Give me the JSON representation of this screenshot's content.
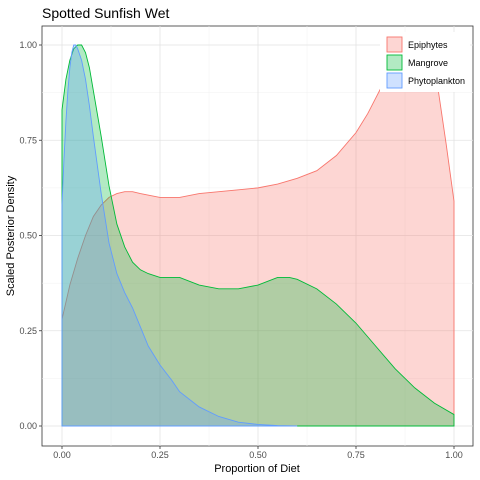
{
  "chart_data": {
    "type": "area",
    "title": "Spotted Sunfish Wet",
    "xlabel": "Proportion of Diet",
    "ylabel": "Scaled Posterior Density",
    "xlim": [
      0,
      1
    ],
    "ylim": [
      0,
      1
    ],
    "x_ticks": [
      "0.00",
      "0.25",
      "0.50",
      "0.75",
      "1.00"
    ],
    "y_ticks": [
      "0.00",
      "0.25",
      "0.50",
      "0.75",
      "1.00"
    ],
    "grid": true,
    "legend_position": "top-right",
    "series": [
      {
        "name": "Epiphytes",
        "fill": "#F8766D",
        "x": [
          0,
          0.02,
          0.04,
          0.06,
          0.08,
          0.1,
          0.12,
          0.14,
          0.16,
          0.18,
          0.2,
          0.25,
          0.3,
          0.35,
          0.4,
          0.45,
          0.5,
          0.55,
          0.6,
          0.65,
          0.7,
          0.75,
          0.78,
          0.8,
          0.82,
          0.85,
          0.88,
          0.9,
          0.92,
          0.94,
          0.96,
          0.98,
          1.0
        ],
        "y": [
          0.28,
          0.37,
          0.44,
          0.5,
          0.55,
          0.58,
          0.6,
          0.61,
          0.615,
          0.615,
          0.61,
          0.6,
          0.6,
          0.61,
          0.615,
          0.62,
          0.625,
          0.635,
          0.65,
          0.67,
          0.71,
          0.77,
          0.82,
          0.86,
          0.9,
          0.94,
          0.97,
          0.99,
          1.0,
          0.96,
          0.88,
          0.74,
          0.59
        ]
      },
      {
        "name": "Mangrove",
        "fill": "#00BA38",
        "x": [
          0,
          0.01,
          0.02,
          0.03,
          0.04,
          0.05,
          0.06,
          0.07,
          0.08,
          0.1,
          0.12,
          0.14,
          0.16,
          0.18,
          0.2,
          0.22,
          0.25,
          0.3,
          0.35,
          0.4,
          0.45,
          0.5,
          0.55,
          0.58,
          0.6,
          0.65,
          0.7,
          0.75,
          0.8,
          0.85,
          0.9,
          0.95,
          1.0
        ],
        "y": [
          0.83,
          0.91,
          0.96,
          0.99,
          1.0,
          1.0,
          0.98,
          0.94,
          0.88,
          0.76,
          0.63,
          0.53,
          0.47,
          0.43,
          0.41,
          0.4,
          0.39,
          0.39,
          0.37,
          0.36,
          0.36,
          0.37,
          0.39,
          0.39,
          0.385,
          0.36,
          0.32,
          0.27,
          0.21,
          0.15,
          0.1,
          0.06,
          0.03
        ]
      },
      {
        "name": "Phytoplankton",
        "fill": "#619CFF",
        "x": [
          0,
          0.005,
          0.01,
          0.015,
          0.02,
          0.025,
          0.03,
          0.035,
          0.04,
          0.05,
          0.06,
          0.07,
          0.08,
          0.1,
          0.12,
          0.14,
          0.16,
          0.18,
          0.2,
          0.22,
          0.25,
          0.28,
          0.3,
          0.35,
          0.4,
          0.45,
          0.5,
          0.55,
          0.6
        ],
        "y": [
          0.58,
          0.7,
          0.8,
          0.88,
          0.94,
          0.98,
          1.0,
          1.0,
          0.99,
          0.96,
          0.91,
          0.84,
          0.76,
          0.61,
          0.48,
          0.4,
          0.35,
          0.31,
          0.26,
          0.21,
          0.16,
          0.12,
          0.09,
          0.05,
          0.025,
          0.01,
          0.004,
          0.001,
          0
        ]
      }
    ]
  }
}
